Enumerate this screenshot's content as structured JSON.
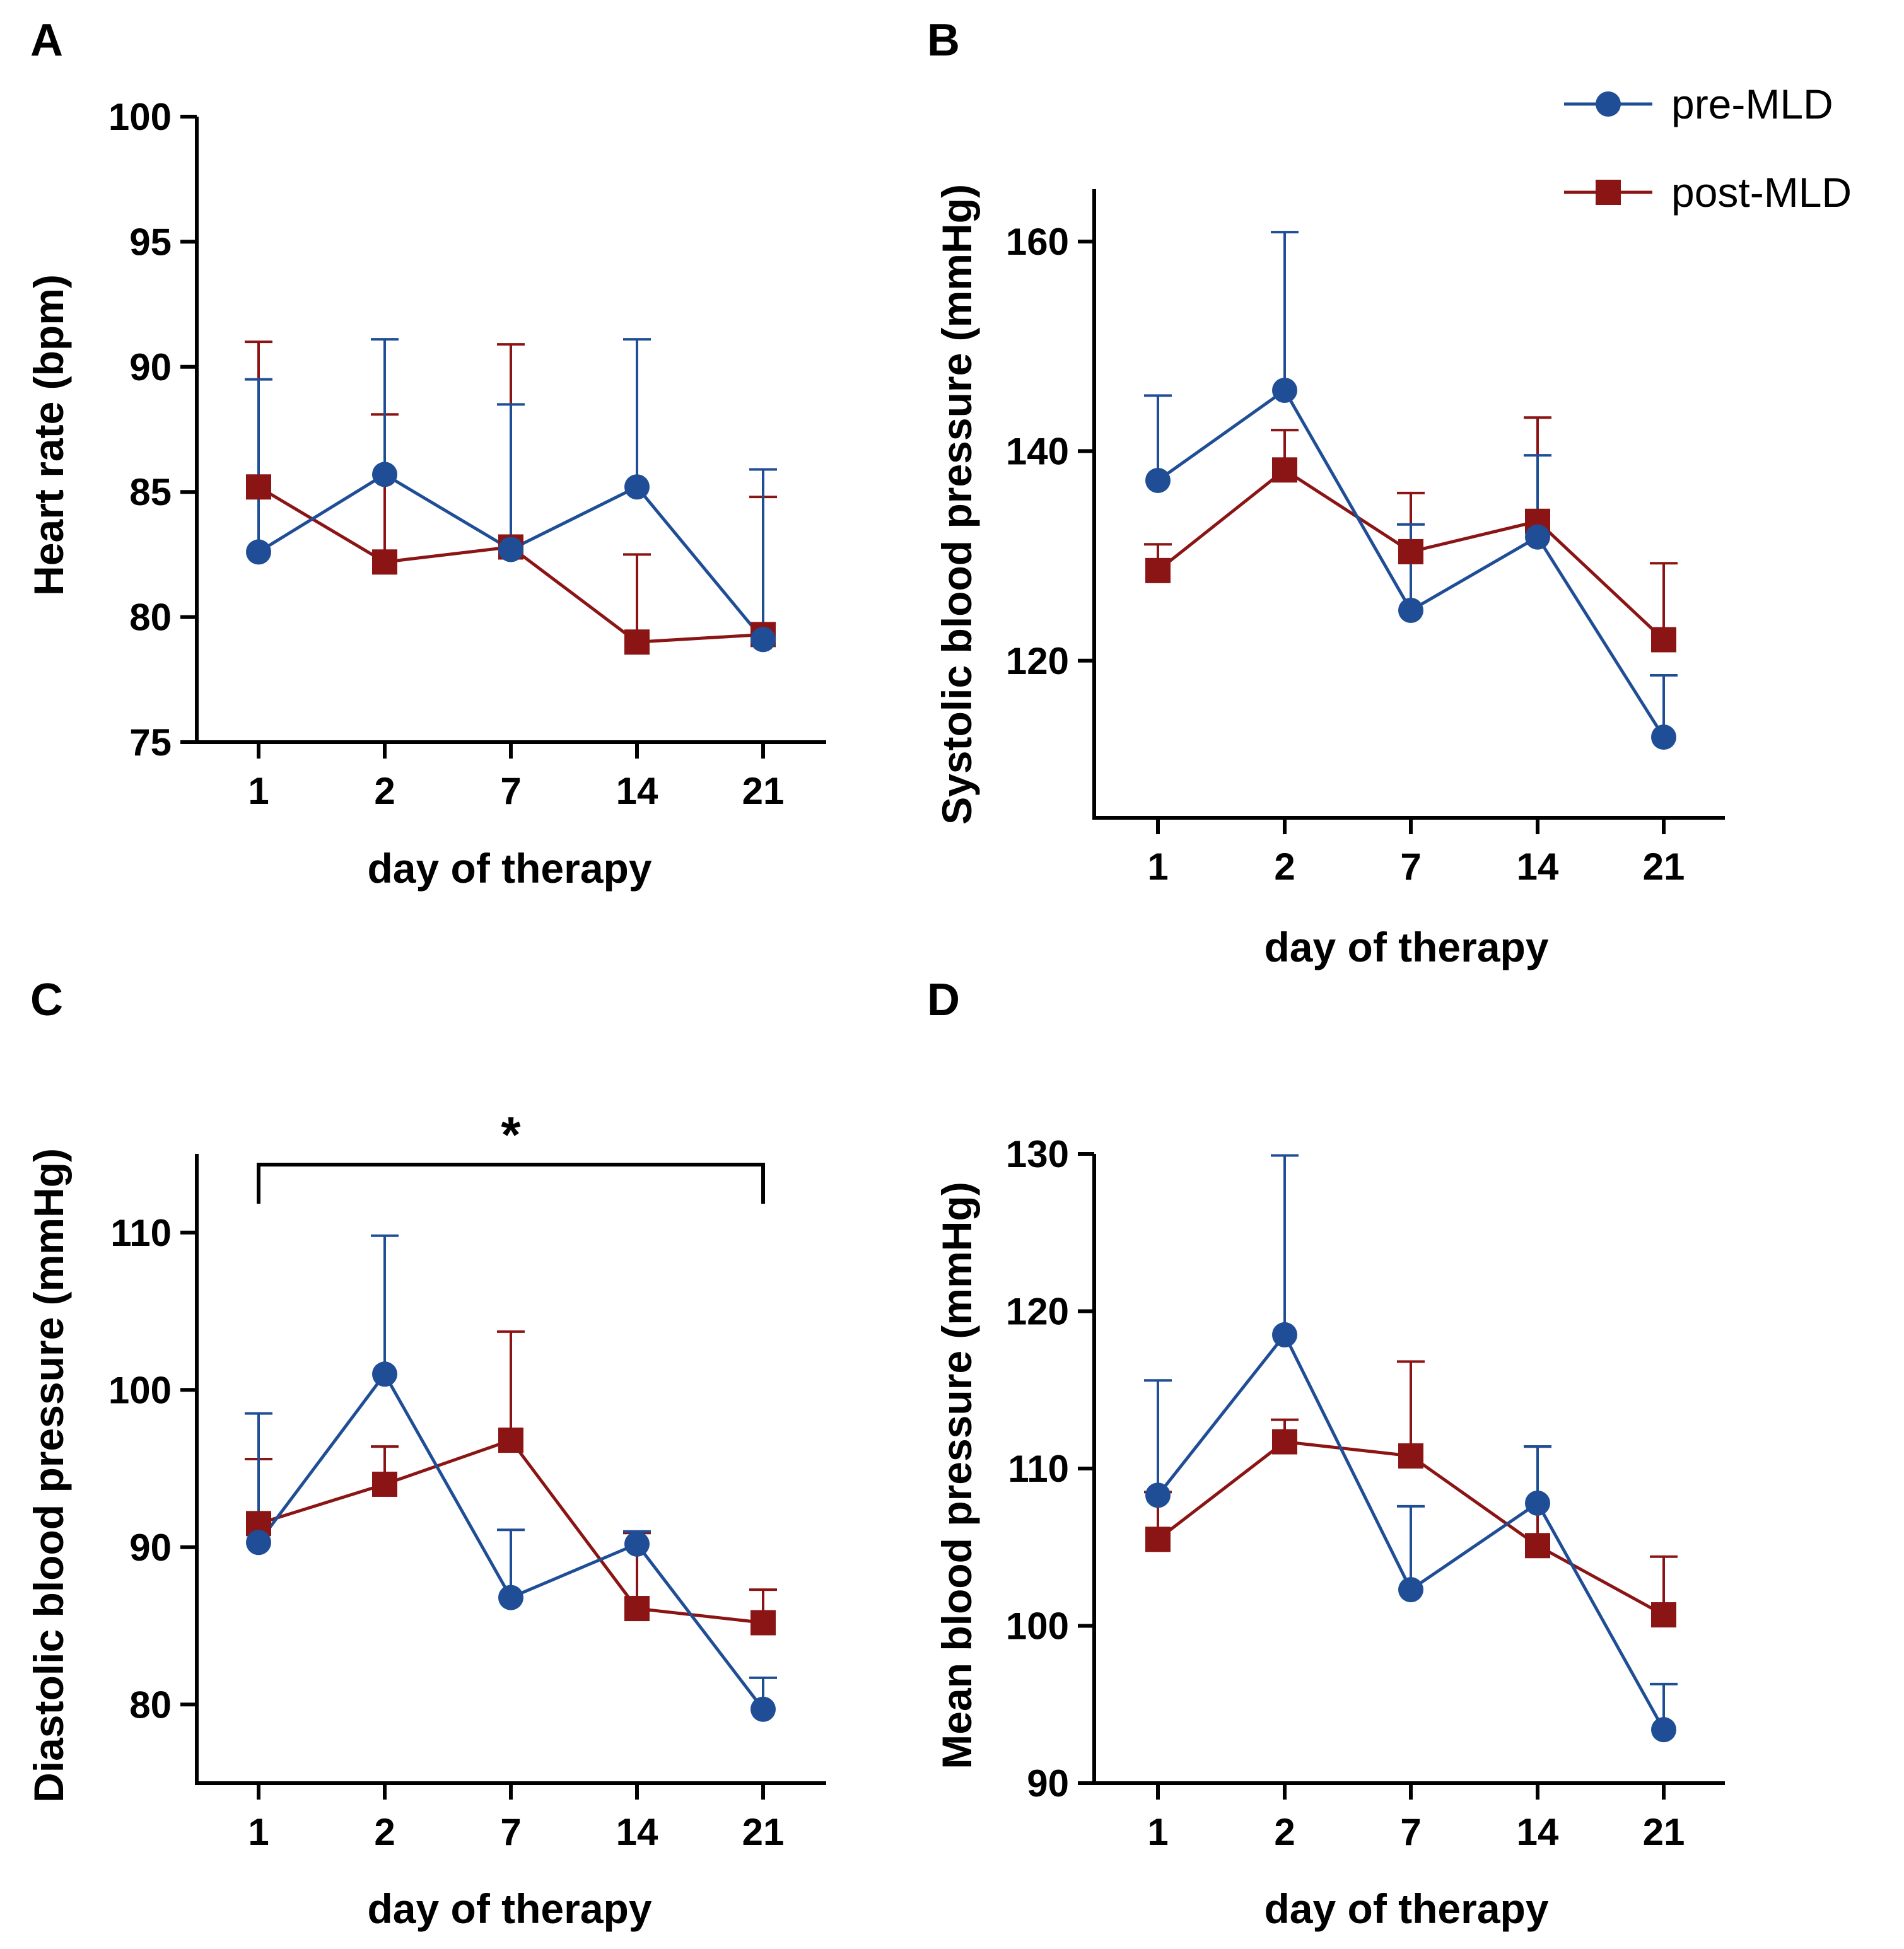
{
  "legend": {
    "items": [
      {
        "label": "pre-MLD",
        "color": "#1f4e96",
        "marker": "circle"
      },
      {
        "label": "post-MLD",
        "color": "#8b1414",
        "marker": "square"
      }
    ]
  },
  "chart_data": [
    {
      "panel": "A",
      "type": "line",
      "title": "",
      "xlabel": "day of therapy",
      "ylabel": "Heart rate (bpm)",
      "categories": [
        "1",
        "2",
        "7",
        "14",
        "21"
      ],
      "ylim": [
        75,
        100
      ],
      "yticks": [
        75,
        80,
        85,
        90,
        95,
        100
      ],
      "series": [
        {
          "name": "pre-MLD",
          "color": "#1f4e96",
          "marker": "circle",
          "values": [
            82.6,
            85.7,
            82.7,
            85.2,
            79.1
          ],
          "error_upper": [
            89.5,
            91.1,
            88.5,
            91.1,
            85.9
          ]
        },
        {
          "name": "post-MLD",
          "color": "#8b1414",
          "marker": "square",
          "values": [
            85.2,
            82.2,
            82.8,
            79.0,
            79.3
          ],
          "error_upper": [
            91.0,
            88.1,
            90.9,
            82.5,
            84.8
          ]
        }
      ]
    },
    {
      "panel": "B",
      "type": "line",
      "title": "",
      "xlabel": "day of therapy",
      "ylabel": "Systolic blood pressure (mmHg)",
      "categories": [
        "1",
        "2",
        "7",
        "14",
        "21"
      ],
      "ylim": [
        105,
        165
      ],
      "yticks": [
        120,
        140,
        160
      ],
      "series": [
        {
          "name": "pre-MLD",
          "color": "#1f4e96",
          "marker": "circle",
          "values": [
            137.2,
            145.8,
            124.8,
            131.8,
            112.7
          ],
          "error_upper": [
            145.3,
            160.9,
            133.0,
            139.6,
            118.6
          ]
        },
        {
          "name": "post-MLD",
          "color": "#8b1414",
          "marker": "square",
          "values": [
            128.6,
            138.2,
            130.4,
            133.3,
            122.0
          ],
          "error_upper": [
            131.1,
            142.0,
            136.0,
            143.2,
            129.3
          ]
        }
      ]
    },
    {
      "panel": "C",
      "type": "line",
      "title": "",
      "xlabel": "day of therapy",
      "ylabel": "Diastolic blood pressure (mmHg)",
      "categories": [
        "1",
        "2",
        "7",
        "14",
        "21"
      ],
      "ylim": [
        75,
        115
      ],
      "yticks": [
        80,
        90,
        100,
        110
      ],
      "significance": {
        "label": "*",
        "from": "1",
        "to": "21"
      },
      "series": [
        {
          "name": "pre-MLD",
          "color": "#1f4e96",
          "marker": "circle",
          "values": [
            90.3,
            101.0,
            86.8,
            90.2,
            79.7
          ],
          "error_upper": [
            98.5,
            109.8,
            91.1,
            91.0,
            81.7
          ]
        },
        {
          "name": "post-MLD",
          "color": "#8b1414",
          "marker": "square",
          "values": [
            91.5,
            94.0,
            96.8,
            86.1,
            85.2
          ],
          "error_upper": [
            95.6,
            96.4,
            103.7,
            90.9,
            87.3
          ]
        }
      ]
    },
    {
      "panel": "D",
      "type": "line",
      "title": "",
      "xlabel": "day of therapy",
      "ylabel": "Mean blood pressure (mmHg)",
      "categories": [
        "1",
        "2",
        "7",
        "14",
        "21"
      ],
      "ylim": [
        90,
        130
      ],
      "yticks": [
        90,
        100,
        110,
        120,
        130
      ],
      "series": [
        {
          "name": "pre-MLD",
          "color": "#1f4e96",
          "marker": "circle",
          "values": [
            108.3,
            118.5,
            102.3,
            107.8,
            93.4
          ],
          "error_upper": [
            115.6,
            129.9,
            107.6,
            111.4,
            96.3
          ]
        },
        {
          "name": "post-MLD",
          "color": "#8b1414",
          "marker": "square",
          "values": [
            105.5,
            111.7,
            110.8,
            105.1,
            100.7
          ],
          "error_upper": [
            108.5,
            113.1,
            116.8,
            111.4,
            104.4
          ]
        }
      ]
    }
  ]
}
